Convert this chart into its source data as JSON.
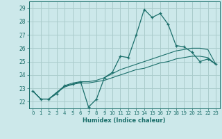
{
  "xlabel": "Humidex (Indice chaleur)",
  "background_color": "#cce8ea",
  "grid_color": "#aacccc",
  "line_color": "#1a6e6a",
  "xlim": [
    -0.5,
    23.5
  ],
  "ylim": [
    21.5,
    29.5
  ],
  "yticks": [
    22,
    23,
    24,
    25,
    26,
    27,
    28,
    29
  ],
  "xticks": [
    0,
    1,
    2,
    3,
    4,
    5,
    6,
    7,
    8,
    9,
    10,
    11,
    12,
    13,
    14,
    15,
    16,
    17,
    18,
    19,
    20,
    21,
    22,
    23
  ],
  "series1_x": [
    0,
    1,
    2,
    3,
    4,
    5,
    6,
    7,
    8,
    9,
    10,
    11,
    12,
    13,
    14,
    15,
    16,
    17,
    18,
    19,
    20,
    21,
    22,
    23
  ],
  "series1_y": [
    22.8,
    22.2,
    22.2,
    22.6,
    23.2,
    23.3,
    23.5,
    21.6,
    22.2,
    23.8,
    24.2,
    25.4,
    25.3,
    27.0,
    28.9,
    28.3,
    28.6,
    27.8,
    26.2,
    26.1,
    25.7,
    25.0,
    25.2,
    24.8
  ],
  "series2_x": [
    0,
    1,
    2,
    3,
    4,
    5,
    6,
    7,
    8,
    9,
    10,
    11,
    12,
    13,
    14,
    15,
    16,
    17,
    18,
    19,
    20,
    21,
    22,
    23
  ],
  "series2_y": [
    22.8,
    22.2,
    22.2,
    22.7,
    23.2,
    23.4,
    23.5,
    23.5,
    23.6,
    23.8,
    24.1,
    24.4,
    24.6,
    24.8,
    25.0,
    25.2,
    25.4,
    25.6,
    25.8,
    25.9,
    26.0,
    26.0,
    25.9,
    24.8
  ],
  "series3_x": [
    0,
    1,
    2,
    3,
    4,
    5,
    6,
    7,
    8,
    9,
    10,
    11,
    12,
    13,
    14,
    15,
    16,
    17,
    18,
    19,
    20,
    21,
    22,
    23
  ],
  "series3_y": [
    22.8,
    22.2,
    22.2,
    22.7,
    23.1,
    23.3,
    23.4,
    23.4,
    23.5,
    23.6,
    23.8,
    24.0,
    24.2,
    24.4,
    24.5,
    24.7,
    24.9,
    25.0,
    25.2,
    25.3,
    25.4,
    25.4,
    25.3,
    24.8
  ]
}
